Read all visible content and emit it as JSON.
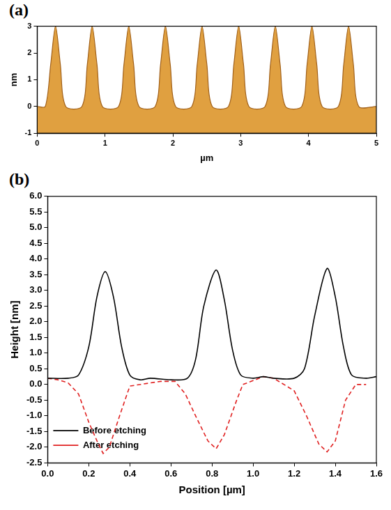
{
  "chart_data": [
    {
      "type": "area",
      "panel": "(a)",
      "x_label": "µm",
      "y_label": "nm",
      "color": "#e0a040",
      "x": [
        0,
        0.12,
        0.2,
        0.27,
        0.34,
        0.42,
        0.66,
        0.74,
        0.81,
        0.88,
        0.96,
        1.2,
        1.28,
        1.35,
        1.42,
        1.5,
        1.74,
        1.82,
        1.89,
        1.96,
        2.04,
        2.28,
        2.36,
        2.43,
        2.5,
        2.58,
        2.82,
        2.9,
        2.97,
        3.04,
        3.12,
        3.36,
        3.44,
        3.51,
        3.58,
        3.66,
        3.9,
        3.98,
        4.05,
        4.12,
        4.2,
        4.44,
        4.52,
        4.59,
        4.66,
        4.74,
        5
      ],
      "values": [
        0,
        0,
        1.6,
        3,
        1.6,
        0,
        0,
        1.6,
        3,
        1.6,
        0,
        0,
        1.6,
        3,
        1.6,
        0,
        0,
        1.6,
        3,
        1.6,
        0,
        0,
        1.6,
        3,
        1.6,
        0,
        0,
        1.6,
        3,
        1.6,
        0,
        0,
        1.6,
        3,
        1.6,
        0,
        0,
        1.6,
        3,
        1.6,
        0,
        0,
        1.6,
        3,
        1.6,
        0,
        0
      ],
      "xlim": [
        0,
        5
      ],
      "xticks": [
        0,
        1,
        2,
        3,
        4,
        5
      ],
      "ylim": [
        -1,
        3
      ],
      "yticks": [
        -1,
        0,
        1,
        2,
        3
      ],
      "grid": false
    },
    {
      "type": "line",
      "panel": "(b)",
      "x_label": "Position [µm]",
      "y_label": "Height [nm]",
      "legend": "top-right",
      "grid": false,
      "xlim": [
        0,
        1.6
      ],
      "xticks": [
        {
          "value": 0,
          "label": "0.0"
        },
        {
          "value": 0.2,
          "label": "0.2"
        },
        {
          "value": 0.4,
          "label": "0.4"
        },
        {
          "value": 0.6,
          "label": "0.6"
        },
        {
          "value": 0.8,
          "label": "0.8"
        },
        {
          "value": 1,
          "label": "1.0"
        },
        {
          "value": 1.2,
          "label": "1.2"
        },
        {
          "value": 1.4,
          "label": "1.4"
        },
        {
          "value": 1.6,
          "label": "1.6"
        }
      ],
      "ylim": [
        -2.5,
        6
      ],
      "yticks": [
        {
          "value": -2.5,
          "label": "-2.5"
        },
        {
          "value": -2,
          "label": "-2.0"
        },
        {
          "value": -1.5,
          "label": "-1.5"
        },
        {
          "value": -1,
          "label": "-1.0"
        },
        {
          "value": -0.5,
          "label": "-0.5"
        },
        {
          "value": 0,
          "label": "0.0"
        },
        {
          "value": 0.5,
          "label": "0.5"
        },
        {
          "value": 1,
          "label": "1.0"
        },
        {
          "value": 1.5,
          "label": "1.5"
        },
        {
          "value": 2,
          "label": "2.0"
        },
        {
          "value": 2.5,
          "label": "2.5"
        },
        {
          "value": 3,
          "label": "3.0"
        },
        {
          "value": 3.5,
          "label": "3.5"
        },
        {
          "value": 4,
          "label": "4.0"
        },
        {
          "value": 4.5,
          "label": "4.5"
        },
        {
          "value": 5,
          "label": "5.0"
        },
        {
          "value": 5.5,
          "label": "5.5"
        },
        {
          "value": 6,
          "label": "6.0"
        }
      ],
      "series": [
        {
          "name": "Before etching",
          "color": "#000000",
          "line_style": "solid",
          "x": [
            0,
            0.1,
            0.15,
            0.2,
            0.24,
            0.28,
            0.32,
            0.36,
            0.4,
            0.45,
            0.5,
            0.6,
            0.68,
            0.72,
            0.76,
            0.82,
            0.86,
            0.9,
            0.94,
            1.0,
            1.05,
            1.1,
            1.2,
            1.25,
            1.3,
            1.36,
            1.4,
            1.44,
            1.48,
            1.55,
            1.6
          ],
          "values": [
            0.2,
            0.2,
            0.3,
            1.2,
            2.8,
            3.6,
            2.8,
            1.2,
            0.3,
            0.15,
            0.2,
            0.15,
            0.2,
            0.8,
            2.5,
            3.65,
            2.7,
            1.1,
            0.3,
            0.2,
            0.25,
            0.2,
            0.2,
            0.5,
            2.2,
            3.7,
            2.8,
            1.2,
            0.3,
            0.2,
            0.25
          ]
        },
        {
          "name": "After etching",
          "color": "#e02020",
          "line_style": "dashed",
          "x": [
            0,
            0.05,
            0.1,
            0.15,
            0.2,
            0.24,
            0.27,
            0.3,
            0.35,
            0.4,
            0.5,
            0.55,
            0.62,
            0.67,
            0.72,
            0.78,
            0.82,
            0.86,
            0.92,
            0.95,
            1.05,
            1.1,
            1.2,
            1.26,
            1.32,
            1.36,
            1.4,
            1.45,
            1.5,
            1.55
          ],
          "values": [
            0.2,
            0.15,
            0.05,
            -0.3,
            -1.2,
            -1.8,
            -2.2,
            -2.0,
            -1.0,
            -0.05,
            0.05,
            0.1,
            0.1,
            -0.3,
            -1.0,
            -1.8,
            -2.05,
            -1.6,
            -0.5,
            0.0,
            0.25,
            0.2,
            -0.2,
            -1.0,
            -1.9,
            -2.15,
            -1.8,
            -0.5,
            0.0,
            0.0
          ]
        }
      ]
    }
  ]
}
